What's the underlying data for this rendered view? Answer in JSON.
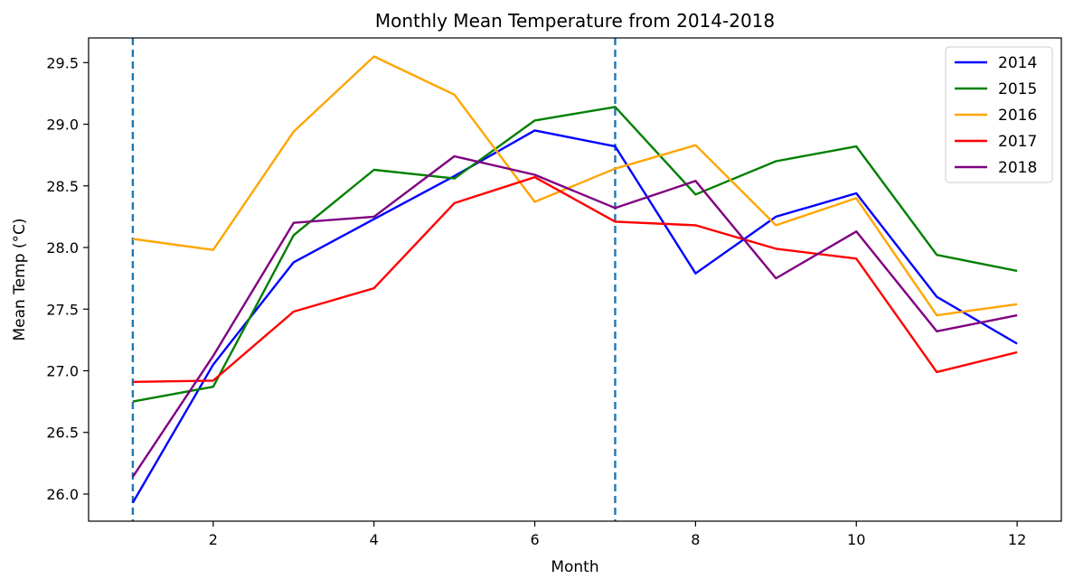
{
  "chart_data": {
    "type": "line",
    "title": "Monthly Mean Temperature from 2014-2018",
    "xlabel": "Month",
    "ylabel": "Mean Temp (°C)",
    "xlim": [
      0.45,
      12.55
    ],
    "ylim": [
      25.78,
      29.7
    ],
    "x": [
      1,
      2,
      3,
      4,
      5,
      6,
      7,
      8,
      9,
      10,
      11,
      12
    ],
    "xticks": [
      2,
      4,
      6,
      8,
      10,
      12
    ],
    "yticks": [
      26.0,
      26.5,
      27.0,
      27.5,
      28.0,
      28.5,
      29.0,
      29.5
    ],
    "grid": false,
    "legend_position": "top-right",
    "vertical_lines": [
      {
        "x": 1,
        "style": "dashed",
        "color": "#1f77b4"
      },
      {
        "x": 7,
        "style": "dashed",
        "color": "#1f77b4"
      }
    ],
    "series": [
      {
        "name": "2014",
        "color": "#0000ff",
        "values": [
          25.93,
          27.05,
          27.88,
          28.23,
          28.58,
          28.95,
          28.82,
          27.79,
          28.25,
          28.44,
          27.6,
          27.22
        ]
      },
      {
        "name": "2015",
        "color": "#008000",
        "values": [
          26.75,
          26.87,
          28.1,
          28.63,
          28.56,
          29.03,
          29.14,
          28.43,
          28.7,
          28.82,
          27.94,
          27.81
        ]
      },
      {
        "name": "2016",
        "color": "#ffa500",
        "values": [
          28.07,
          27.98,
          28.94,
          29.55,
          29.24,
          28.37,
          28.64,
          28.83,
          28.18,
          28.4,
          27.45,
          27.54
        ]
      },
      {
        "name": "2017",
        "color": "#ff0000",
        "values": [
          26.91,
          26.92,
          27.48,
          27.67,
          28.36,
          28.57,
          28.21,
          28.18,
          27.99,
          27.91,
          26.99,
          27.15
        ]
      },
      {
        "name": "2018",
        "color": "#800080",
        "values": [
          26.14,
          27.12,
          28.2,
          28.25,
          28.74,
          28.59,
          28.32,
          28.54,
          27.75,
          28.13,
          27.32,
          27.45
        ]
      }
    ]
  }
}
